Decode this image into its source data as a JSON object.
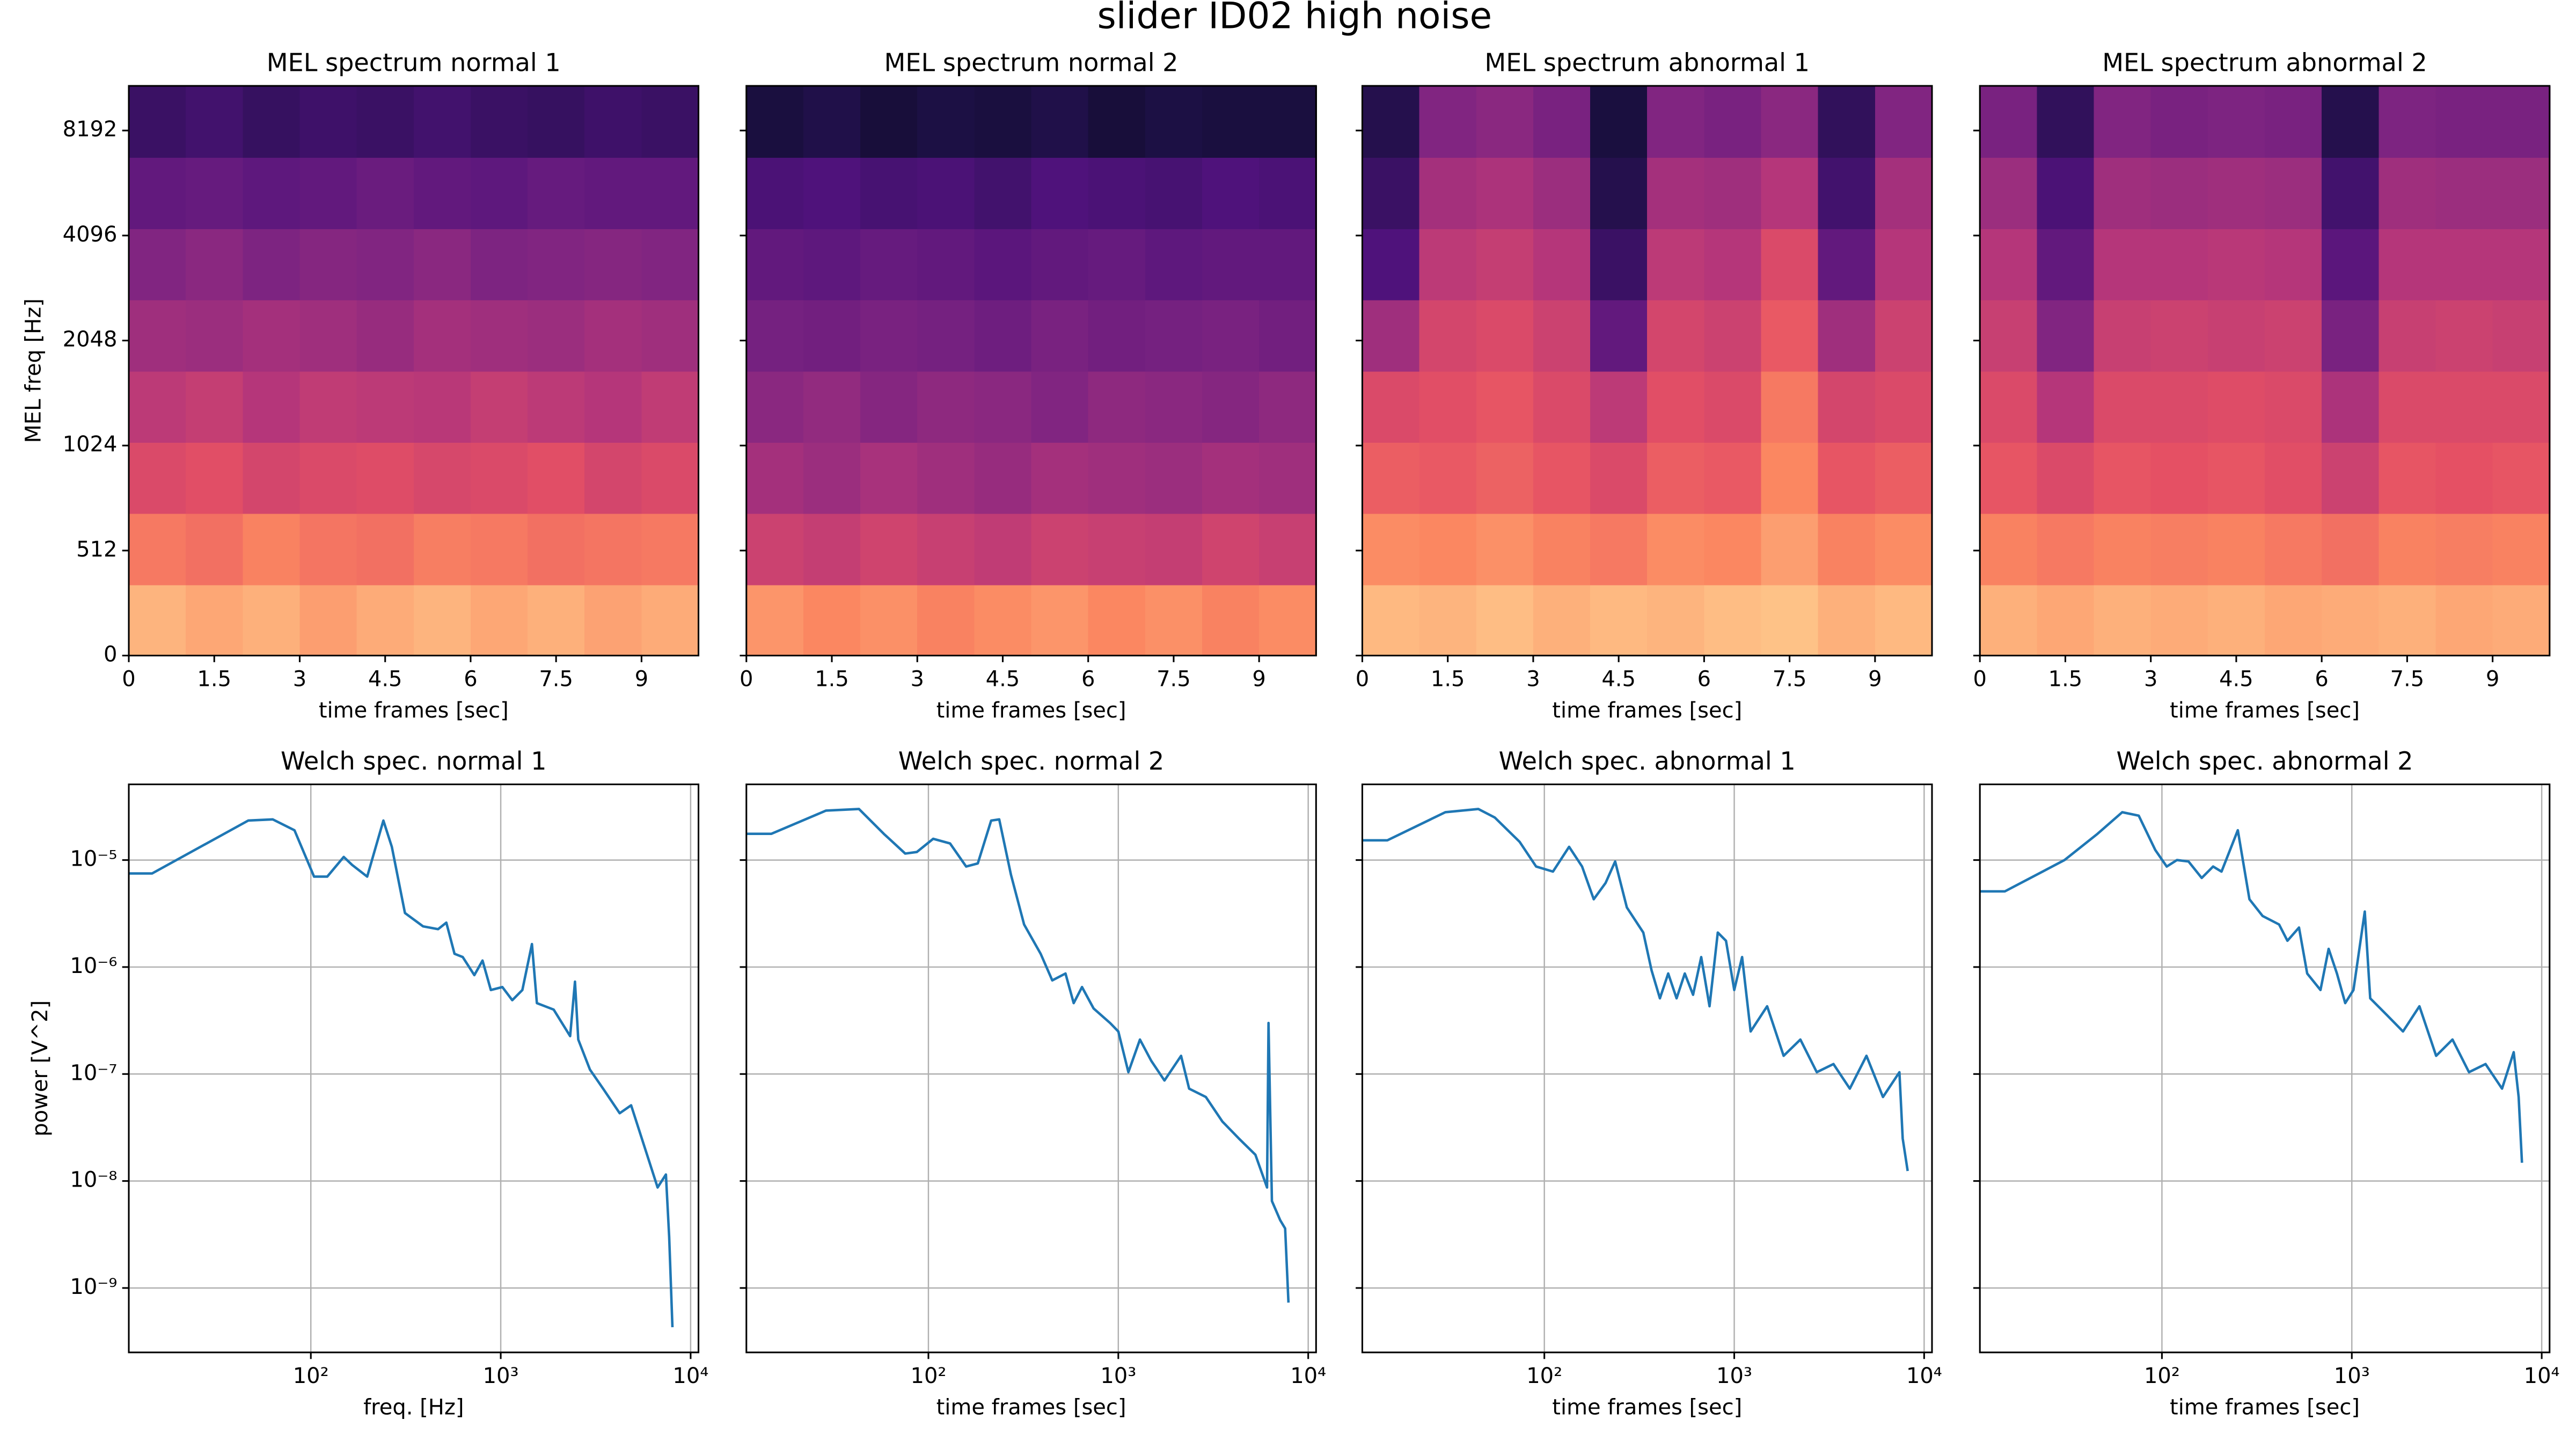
{
  "title": "slider ID02 high noise",
  "chart_data": [
    {
      "type": "heatmap",
      "title": "MEL spectrum normal 1",
      "xlabel": "time frames [sec]",
      "ylabel": "MEL freq [Hz]",
      "colormap": "magma",
      "zlim": [
        0,
        1
      ],
      "xlim": [
        0,
        10
      ],
      "xticks": [
        0,
        1.5,
        3,
        4.5,
        6,
        7.5,
        9
      ],
      "yscale": "symlog",
      "linthresh": 512,
      "ylim": [
        0,
        11000
      ],
      "yticks": [
        0,
        512,
        1024,
        2048,
        4096,
        8192
      ],
      "show_yticklabels": true,
      "values": [
        [
          0.85,
          0.82,
          0.84,
          0.8,
          0.83,
          0.85,
          0.82,
          0.84,
          0.81,
          0.83
        ],
        [
          0.72,
          0.7,
          0.74,
          0.71,
          0.7,
          0.73,
          0.72,
          0.7,
          0.71,
          0.72
        ],
        [
          0.6,
          0.62,
          0.58,
          0.6,
          0.61,
          0.59,
          0.6,
          0.62,
          0.58,
          0.6
        ],
        [
          0.52,
          0.54,
          0.5,
          0.53,
          0.52,
          0.51,
          0.54,
          0.52,
          0.5,
          0.53
        ],
        [
          0.45,
          0.44,
          0.46,
          0.45,
          0.43,
          0.46,
          0.45,
          0.44,
          0.46,
          0.45
        ],
        [
          0.38,
          0.4,
          0.37,
          0.39,
          0.38,
          0.4,
          0.37,
          0.38,
          0.39,
          0.38
        ],
        [
          0.3,
          0.31,
          0.29,
          0.3,
          0.32,
          0.3,
          0.29,
          0.31,
          0.3,
          0.3
        ],
        [
          0.2,
          0.22,
          0.19,
          0.21,
          0.2,
          0.22,
          0.2,
          0.19,
          0.21,
          0.2
        ]
      ]
    },
    {
      "type": "heatmap",
      "title": "MEL spectrum normal 2",
      "xlabel": "time frames [sec]",
      "colormap": "magma",
      "zlim": [
        0,
        1
      ],
      "xlim": [
        0,
        10
      ],
      "xticks": [
        0,
        1.5,
        3,
        4.5,
        6,
        7.5,
        9
      ],
      "yscale": "symlog",
      "linthresh": 512,
      "ylim": [
        0,
        11000
      ],
      "yticks": [
        0,
        512,
        1024,
        2048,
        4096,
        8192
      ],
      "show_yticklabels": false,
      "values": [
        [
          0.78,
          0.75,
          0.77,
          0.74,
          0.76,
          0.78,
          0.75,
          0.77,
          0.74,
          0.76
        ],
        [
          0.56,
          0.54,
          0.57,
          0.55,
          0.53,
          0.56,
          0.55,
          0.54,
          0.57,
          0.55
        ],
        [
          0.46,
          0.44,
          0.47,
          0.45,
          0.43,
          0.46,
          0.45,
          0.44,
          0.46,
          0.45
        ],
        [
          0.4,
          0.42,
          0.39,
          0.41,
          0.4,
          0.38,
          0.41,
          0.4,
          0.39,
          0.41
        ],
        [
          0.35,
          0.34,
          0.36,
          0.35,
          0.33,
          0.36,
          0.34,
          0.35,
          0.36,
          0.34
        ],
        [
          0.3,
          0.29,
          0.31,
          0.3,
          0.28,
          0.3,
          0.31,
          0.29,
          0.3,
          0.3
        ],
        [
          0.24,
          0.25,
          0.23,
          0.24,
          0.22,
          0.25,
          0.24,
          0.23,
          0.25,
          0.24
        ],
        [
          0.12,
          0.14,
          0.11,
          0.13,
          0.12,
          0.14,
          0.11,
          0.13,
          0.12,
          0.12
        ]
      ]
    },
    {
      "type": "heatmap",
      "title": "MEL spectrum abnormal 1",
      "xlabel": "time frames [sec]",
      "colormap": "magma",
      "zlim": [
        0,
        1
      ],
      "xlim": [
        0,
        10
      ],
      "xticks": [
        0,
        1.5,
        3,
        4.5,
        6,
        7.5,
        9
      ],
      "yscale": "symlog",
      "linthresh": 512,
      "ylim": [
        0,
        11000
      ],
      "yticks": [
        0,
        512,
        1024,
        2048,
        4096,
        8192
      ],
      "show_yticklabels": false,
      "values": [
        [
          0.86,
          0.85,
          0.87,
          0.84,
          0.86,
          0.85,
          0.87,
          0.88,
          0.84,
          0.86
        ],
        [
          0.76,
          0.75,
          0.77,
          0.74,
          0.72,
          0.76,
          0.75,
          0.8,
          0.74,
          0.76
        ],
        [
          0.66,
          0.65,
          0.67,
          0.64,
          0.6,
          0.66,
          0.65,
          0.75,
          0.64,
          0.66
        ],
        [
          0.6,
          0.62,
          0.64,
          0.6,
          0.52,
          0.62,
          0.6,
          0.72,
          0.58,
          0.6
        ],
        [
          0.45,
          0.58,
          0.6,
          0.56,
          0.3,
          0.58,
          0.56,
          0.65,
          0.45,
          0.56
        ],
        [
          0.25,
          0.52,
          0.54,
          0.5,
          0.2,
          0.52,
          0.5,
          0.6,
          0.3,
          0.5
        ],
        [
          0.2,
          0.46,
          0.48,
          0.44,
          0.15,
          0.46,
          0.45,
          0.5,
          0.22,
          0.46
        ],
        [
          0.15,
          0.38,
          0.4,
          0.36,
          0.12,
          0.38,
          0.36,
          0.4,
          0.18,
          0.38
        ]
      ]
    },
    {
      "type": "heatmap",
      "title": "MEL spectrum abnormal 2",
      "xlabel": "time frames [sec]",
      "colormap": "magma",
      "zlim": [
        0,
        1
      ],
      "xlim": [
        0,
        10
      ],
      "xticks": [
        0,
        1.5,
        3,
        4.5,
        6,
        7.5,
        9
      ],
      "yscale": "symlog",
      "linthresh": 512,
      "ylim": [
        0,
        11000
      ],
      "yticks": [
        0,
        512,
        1024,
        2048,
        4096,
        8192
      ],
      "show_yticklabels": false,
      "values": [
        [
          0.84,
          0.82,
          0.84,
          0.83,
          0.84,
          0.82,
          0.83,
          0.84,
          0.82,
          0.83
        ],
        [
          0.74,
          0.72,
          0.74,
          0.73,
          0.74,
          0.72,
          0.7,
          0.74,
          0.73,
          0.74
        ],
        [
          0.64,
          0.6,
          0.64,
          0.63,
          0.64,
          0.62,
          0.56,
          0.64,
          0.63,
          0.64
        ],
        [
          0.6,
          0.5,
          0.6,
          0.6,
          0.61,
          0.6,
          0.48,
          0.6,
          0.6,
          0.6
        ],
        [
          0.55,
          0.38,
          0.55,
          0.56,
          0.55,
          0.56,
          0.36,
          0.55,
          0.56,
          0.55
        ],
        [
          0.5,
          0.3,
          0.5,
          0.5,
          0.51,
          0.5,
          0.28,
          0.5,
          0.5,
          0.5
        ],
        [
          0.44,
          0.24,
          0.45,
          0.44,
          0.45,
          0.44,
          0.22,
          0.45,
          0.44,
          0.44
        ],
        [
          0.36,
          0.18,
          0.38,
          0.36,
          0.37,
          0.36,
          0.15,
          0.37,
          0.36,
          0.36
        ]
      ]
    },
    {
      "type": "line",
      "title": "Welch spec. normal 1",
      "xlabel": "freq. [Hz]",
      "ylabel": "power [V^2]",
      "xscale": "log",
      "yscale": "log",
      "grid": true,
      "color": "#1f77b4",
      "xlim": [
        11,
        11000
      ],
      "xticks": [
        {
          "value": 100,
          "label": "10²"
        },
        {
          "value": 1000,
          "label": "10³"
        },
        {
          "value": 10000,
          "label": "10⁴"
        }
      ],
      "ylim": [
        2.5e-10,
        5.1e-05
      ],
      "yticks": [
        {
          "value": 1e-05,
          "label": "10⁻⁵"
        },
        {
          "value": 1e-06,
          "label": "10⁻⁶"
        },
        {
          "value": 1e-07,
          "label": "10⁻⁷"
        },
        {
          "value": 1e-08,
          "label": "10⁻⁸"
        },
        {
          "value": 1e-09,
          "label": "10⁻⁹"
        }
      ],
      "x": [
        11,
        14.6,
        46.8,
        63,
        82,
        104,
        122,
        149,
        165,
        198,
        241,
        267,
        313,
        390,
        468,
        517,
        571,
        631,
        726,
        802,
        887,
        1020,
        1150,
        1300,
        1460,
        1550,
        1900,
        2320,
        2460,
        2560,
        2950,
        3460,
        4230,
        4860,
        5710,
        6700,
        7410,
        7710,
        8020
      ],
      "values": [
        7.5e-06,
        7.5e-06,
        2.34e-05,
        2.4e-05,
        1.9e-05,
        7e-06,
        7e-06,
        1.07e-05,
        9e-06,
        7e-06,
        2.34e-05,
        1.33e-05,
        3.2e-06,
        2.4e-06,
        2.26e-06,
        2.6e-06,
        1.33e-06,
        1.24e-06,
        8.4e-07,
        1.15e-06,
        6.1e-07,
        6.5e-07,
        4.9e-07,
        6.1e-07,
        1.64e-06,
        4.6e-07,
        4e-07,
        2.26e-07,
        7.3e-07,
        2.1e-07,
        1.1e-07,
        7.3e-08,
        4.3e-08,
        5.1e-08,
        2.1e-08,
        8.7e-09,
        1.15e-08,
        3e-09,
        4.3e-10
      ]
    },
    {
      "type": "line",
      "title": "Welch spec. normal 2",
      "xlabel": "time frames [sec]",
      "xscale": "log",
      "yscale": "log",
      "grid": true,
      "color": "#1f77b4",
      "xlim": [
        11,
        11000
      ],
      "xticks": [
        {
          "value": 100,
          "label": "10²"
        },
        {
          "value": 1000,
          "label": "10³"
        },
        {
          "value": 10000,
          "label": "10⁴"
        }
      ],
      "ylim": [
        2.5e-10,
        5.1e-05
      ],
      "yticks": [
        1e-05,
        1e-06,
        1e-07,
        1e-08,
        1e-09
      ],
      "x": [
        11,
        14.9,
        28.9,
        43.1,
        58.2,
        75.5,
        86.9,
        106,
        130,
        158,
        182,
        214,
        236,
        272,
        319,
        390,
        449,
        527,
        582,
        644,
        741,
        905,
        1000,
        1130,
        1300,
        1490,
        1750,
        2140,
        2360,
        2890,
        3530,
        4310,
        5270,
        6070,
        6180,
        6440,
        7120,
        7560,
        7870
      ],
      "values": [
        1.76e-05,
        1.76e-05,
        2.9e-05,
        3e-05,
        1.76e-05,
        1.15e-05,
        1.19e-05,
        1.58e-05,
        1.43e-05,
        8.7e-06,
        9.3e-06,
        2.34e-05,
        2.4e-05,
        7.3e-06,
        2.5e-06,
        1.33e-06,
        7.5e-07,
        8.7e-07,
        4.6e-07,
        6.5e-07,
        4.1e-07,
        3e-07,
        2.5e-07,
        1.04e-07,
        2.1e-07,
        1.33e-07,
        8.7e-08,
        1.48e-07,
        7.3e-08,
        6.1e-08,
        3.6e-08,
        2.5e-08,
        1.76e-08,
        8.7e-09,
        3e-07,
        6.5e-09,
        4.3e-09,
        3.6e-09,
        7.3e-10
      ]
    },
    {
      "type": "line",
      "title": "Welch spec. abnormal 1",
      "xlabel": "time frames [sec]",
      "xscale": "log",
      "yscale": "log",
      "grid": true,
      "color": "#1f77b4",
      "xlim": [
        11,
        11000
      ],
      "xticks": [
        {
          "value": 100,
          "label": "10²"
        },
        {
          "value": 1000,
          "label": "10³"
        },
        {
          "value": 10000,
          "label": "10⁴"
        }
      ],
      "ylim": [
        2.5e-10,
        5.1e-05
      ],
      "yticks": [
        1e-05,
        1e-06,
        1e-07,
        1e-08,
        1e-09
      ],
      "x": [
        11,
        14.9,
        30.1,
        44.9,
        54.8,
        74.1,
        90.5,
        111,
        135,
        158,
        182,
        210,
        236,
        272,
        332,
        367,
        406,
        449,
        497,
        549,
        607,
        670,
        741,
        819,
        905,
        1000,
        1100,
        1220,
        1490,
        1820,
        2230,
        2720,
        3330,
        4060,
        4970,
        6070,
        7410,
        7710,
        8190
      ],
      "values": [
        1.53e-05,
        1.53e-05,
        2.8e-05,
        3e-05,
        2.5e-05,
        1.48e-05,
        8.7e-06,
        7.8e-06,
        1.33e-05,
        8.7e-06,
        4.3e-06,
        6.1e-06,
        9.7e-06,
        3.6e-06,
        2.1e-06,
        9.3e-07,
        5.1e-07,
        8.7e-07,
        5.1e-07,
        8.7e-07,
        5.5e-07,
        1.24e-06,
        4.3e-07,
        2.1e-06,
        1.76e-06,
        6.1e-07,
        1.24e-06,
        2.5e-07,
        4.3e-07,
        1.48e-07,
        2.1e-07,
        1.04e-07,
        1.24e-07,
        7.3e-08,
        1.48e-07,
        6.1e-08,
        1.04e-07,
        2.5e-08,
        1.24e-08
      ]
    },
    {
      "type": "line",
      "title": "Welch spec. abnormal 2",
      "xlabel": "time frames [sec]",
      "xscale": "log",
      "yscale": "log",
      "grid": true,
      "color": "#1f77b4",
      "xlim": [
        11,
        11000
      ],
      "xticks": [
        {
          "value": 100,
          "label": "10²"
        },
        {
          "value": 1000,
          "label": "10³"
        },
        {
          "value": 10000,
          "label": "10⁴"
        }
      ],
      "ylim": [
        2.5e-10,
        5.1e-05
      ],
      "yticks": [
        1e-05,
        1e-06,
        1e-07,
        1e-08,
        1e-09
      ],
      "x": [
        11,
        14.9,
        30.7,
        45.8,
        61.8,
        75.5,
        92.3,
        106,
        120,
        138,
        162,
        186,
        206,
        251,
        289,
        339,
        414,
        458,
        527,
        582,
        684,
        755,
        835,
        923,
        1020,
        1170,
        1250,
        1520,
        1860,
        2270,
        2780,
        3390,
        4140,
        5060,
        6180,
        7120,
        7560,
        7870
      ],
      "values": [
        5.1e-06,
        5.1e-06,
        1e-05,
        1.76e-05,
        2.8e-05,
        2.6e-05,
        1.24e-05,
        8.7e-06,
        1e-05,
        9.7e-06,
        6.8e-06,
        8.7e-06,
        7.8e-06,
        1.9e-05,
        4.3e-06,
        3e-06,
        2.5e-06,
        1.76e-06,
        2.34e-06,
        8.7e-07,
        6.1e-07,
        1.48e-06,
        8.7e-07,
        4.6e-07,
        6.1e-07,
        3.3e-06,
        5.1e-07,
        3.6e-07,
        2.5e-07,
        4.3e-07,
        1.48e-07,
        2.1e-07,
        1.04e-07,
        1.24e-07,
        7.3e-08,
        1.6e-07,
        6.1e-08,
        1.48e-08
      ]
    }
  ]
}
